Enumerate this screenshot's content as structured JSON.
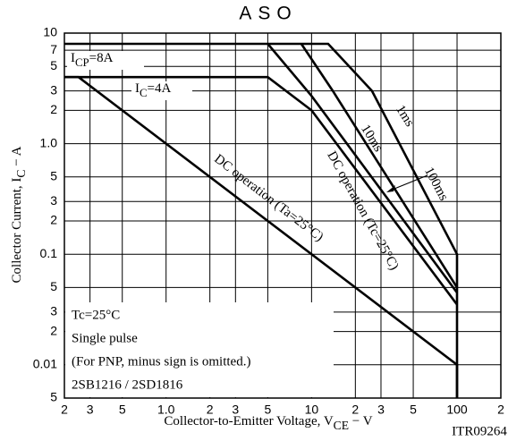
{
  "chart_data": {
    "type": "line",
    "title": "ASO",
    "xscale": "log",
    "yscale": "log",
    "grid": true,
    "xlabel": [
      "Collector-to-Emitter Voltage, V",
      "CE",
      "  −  V"
    ],
    "ylabel": [
      "Collector Current, I",
      "C",
      "  −  A"
    ],
    "xlim": [
      0.2,
      200
    ],
    "ylim": [
      0.005,
      10
    ],
    "xticks": [
      {
        "value": 0.2,
        "label": "2"
      },
      {
        "value": 0.3,
        "label": "3"
      },
      {
        "value": 0.5,
        "label": "5"
      },
      {
        "value": 1,
        "label": "1.0"
      },
      2,
      3,
      5,
      10,
      {
        "value": 20,
        "label": "2"
      },
      {
        "value": 30,
        "label": "3"
      },
      {
        "value": 50,
        "label": "5"
      },
      100,
      {
        "value": 200,
        "label": "2"
      }
    ],
    "yticks": [
      10,
      7,
      5,
      3,
      2,
      {
        "value": 1,
        "label": "1.0"
      },
      {
        "value": 0.5,
        "label": "5"
      },
      {
        "value": 0.3,
        "label": "3"
      },
      {
        "value": 0.2,
        "label": "2"
      },
      0.1,
      {
        "value": 0.05,
        "label": "5"
      },
      {
        "value": 0.03,
        "label": "3"
      },
      {
        "value": 0.02,
        "label": "2"
      },
      0.01,
      {
        "value": 0.005,
        "label": "5"
      }
    ],
    "series": [
      {
        "name": "DC operation (Ta=25°C)",
        "color": "#000000",
        "x": [
          0.2,
          0.25,
          100,
          100
        ],
        "values": [
          4,
          4,
          0.01,
          0.005
        ]
      },
      {
        "name": "DC operation (Tc=25°C)",
        "color": "#000000",
        "x": [
          0.2,
          5,
          10,
          100
        ],
        "values": [
          4,
          4,
          2,
          0.035
        ]
      },
      {
        "name": "1ms",
        "color": "#000000",
        "x": [
          0.2,
          13,
          26,
          100,
          100
        ],
        "values": [
          8,
          8,
          3,
          0.1,
          0.005
        ]
      },
      {
        "name": "10ms",
        "color": "#000000",
        "x": [
          8.5,
          14,
          100
        ],
        "values": [
          8,
          3,
          0.05
        ]
      },
      {
        "name": "100ms",
        "color": "#000000",
        "x": [
          5,
          10,
          100
        ],
        "values": [
          8,
          2.7,
          0.045
        ]
      }
    ],
    "annotations": [
      [
        "I",
        "CP",
        "=8A"
      ],
      [
        "I",
        "C",
        "=4A"
      ]
    ],
    "notes": [
      "Tc=25°C",
      "Single pulse",
      "(For PNP, minus sign is omitted.)",
      "2SB1216 / 2SD1816"
    ],
    "code": "ITR09264"
  }
}
